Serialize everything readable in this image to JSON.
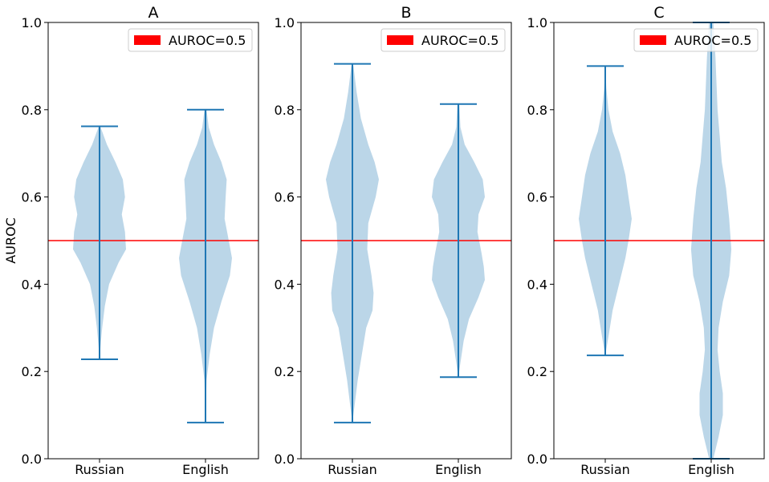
{
  "chart_data": [
    {
      "type": "violin",
      "title": "A",
      "ylabel": "AUROC",
      "ylim": [
        0,
        1
      ],
      "yticks": [
        "0.0",
        "0.2",
        "0.4",
        "0.6",
        "0.8",
        "1.0"
      ],
      "categories": [
        "Russian",
        "English"
      ],
      "reference_line": {
        "y": 0.5,
        "label": "AUROC=0.5",
        "color": "#ff0000"
      },
      "legend_position": "upper right",
      "violins": [
        {
          "category": "Russian",
          "min": 0.228,
          "max": 0.762,
          "profile": [
            [
              0.228,
              0.0
            ],
            [
              0.26,
              0.02
            ],
            [
              0.3,
              0.05
            ],
            [
              0.35,
              0.1
            ],
            [
              0.4,
              0.18
            ],
            [
              0.45,
              0.36
            ],
            [
              0.48,
              0.5
            ],
            [
              0.52,
              0.48
            ],
            [
              0.56,
              0.42
            ],
            [
              0.6,
              0.48
            ],
            [
              0.64,
              0.44
            ],
            [
              0.68,
              0.3
            ],
            [
              0.72,
              0.14
            ],
            [
              0.76,
              0.02
            ]
          ]
        },
        {
          "category": "English",
          "min": 0.083,
          "max": 0.8,
          "profile": [
            [
              0.083,
              0.0
            ],
            [
              0.18,
              0.02
            ],
            [
              0.24,
              0.08
            ],
            [
              0.3,
              0.16
            ],
            [
              0.36,
              0.3
            ],
            [
              0.42,
              0.46
            ],
            [
              0.46,
              0.5
            ],
            [
              0.5,
              0.44
            ],
            [
              0.55,
              0.36
            ],
            [
              0.6,
              0.38
            ],
            [
              0.64,
              0.4
            ],
            [
              0.68,
              0.3
            ],
            [
              0.72,
              0.16
            ],
            [
              0.76,
              0.06
            ],
            [
              0.8,
              0.02
            ]
          ]
        }
      ]
    },
    {
      "type": "violin",
      "title": "B",
      "ylabel": "",
      "ylim": [
        0,
        1
      ],
      "yticks": [
        "0.0",
        "0.2",
        "0.4",
        "0.6",
        "0.8",
        "1.0"
      ],
      "categories": [
        "Russian",
        "English"
      ],
      "reference_line": {
        "y": 0.5,
        "label": "AUROC=0.5",
        "color": "#ff0000"
      },
      "legend_position": "upper right",
      "violins": [
        {
          "category": "Russian",
          "min": 0.083,
          "max": 0.905,
          "profile": [
            [
              0.083,
              0.0
            ],
            [
              0.12,
              0.04
            ],
            [
              0.18,
              0.1
            ],
            [
              0.24,
              0.18
            ],
            [
              0.3,
              0.26
            ],
            [
              0.34,
              0.38
            ],
            [
              0.38,
              0.4
            ],
            [
              0.42,
              0.36
            ],
            [
              0.48,
              0.28
            ],
            [
              0.54,
              0.3
            ],
            [
              0.6,
              0.44
            ],
            [
              0.64,
              0.5
            ],
            [
              0.68,
              0.42
            ],
            [
              0.72,
              0.3
            ],
            [
              0.78,
              0.16
            ],
            [
              0.84,
              0.08
            ],
            [
              0.9,
              0.02
            ]
          ]
        },
        {
          "category": "English",
          "min": 0.187,
          "max": 0.813,
          "profile": [
            [
              0.187,
              0.0
            ],
            [
              0.22,
              0.04
            ],
            [
              0.27,
              0.1
            ],
            [
              0.32,
              0.2
            ],
            [
              0.37,
              0.38
            ],
            [
              0.41,
              0.5
            ],
            [
              0.44,
              0.48
            ],
            [
              0.47,
              0.44
            ],
            [
              0.52,
              0.36
            ],
            [
              0.56,
              0.38
            ],
            [
              0.6,
              0.5
            ],
            [
              0.64,
              0.46
            ],
            [
              0.68,
              0.3
            ],
            [
              0.72,
              0.12
            ],
            [
              0.76,
              0.04
            ],
            [
              0.81,
              0.02
            ]
          ]
        }
      ]
    },
    {
      "type": "violin",
      "title": "C",
      "ylabel": "",
      "ylim": [
        0,
        1
      ],
      "yticks": [
        "0.0",
        "0.2",
        "0.4",
        "0.6",
        "0.8",
        "1.0"
      ],
      "categories": [
        "Russian",
        "English"
      ],
      "reference_line": {
        "y": 0.5,
        "label": "AUROC=0.5",
        "color": "#ff0000"
      },
      "legend_position": "upper right",
      "violins": [
        {
          "category": "Russian",
          "min": 0.237,
          "max": 0.9,
          "profile": [
            [
              0.237,
              0.0
            ],
            [
              0.28,
              0.06
            ],
            [
              0.34,
              0.14
            ],
            [
              0.4,
              0.26
            ],
            [
              0.46,
              0.38
            ],
            [
              0.5,
              0.44
            ],
            [
              0.55,
              0.5
            ],
            [
              0.6,
              0.44
            ],
            [
              0.65,
              0.38
            ],
            [
              0.7,
              0.28
            ],
            [
              0.75,
              0.14
            ],
            [
              0.8,
              0.06
            ],
            [
              0.85,
              0.02
            ],
            [
              0.9,
              0.0
            ]
          ]
        },
        {
          "category": "English",
          "min": 0.0,
          "max": 1.0,
          "profile": [
            [
              0.0,
              0.04
            ],
            [
              0.05,
              0.14
            ],
            [
              0.1,
              0.22
            ],
            [
              0.15,
              0.22
            ],
            [
              0.2,
              0.16
            ],
            [
              0.25,
              0.12
            ],
            [
              0.3,
              0.14
            ],
            [
              0.36,
              0.22
            ],
            [
              0.42,
              0.34
            ],
            [
              0.48,
              0.38
            ],
            [
              0.55,
              0.34
            ],
            [
              0.62,
              0.28
            ],
            [
              0.68,
              0.2
            ],
            [
              0.74,
              0.16
            ],
            [
              0.8,
              0.12
            ],
            [
              0.86,
              0.1
            ],
            [
              0.92,
              0.08
            ],
            [
              0.96,
              0.06
            ],
            [
              1.0,
              0.04
            ]
          ]
        }
      ]
    }
  ]
}
